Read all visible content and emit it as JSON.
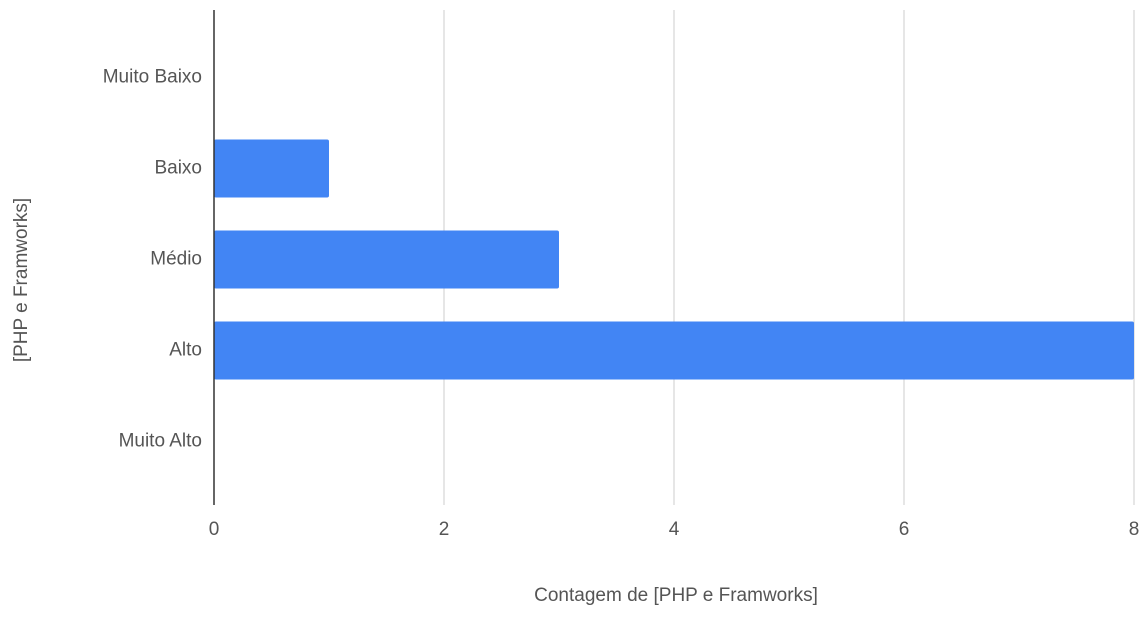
{
  "chart_data": {
    "type": "bar",
    "orientation": "horizontal",
    "categories": [
      "Muito Baixo",
      "Baixo",
      "Médio",
      "Alto",
      "Muito Alto"
    ],
    "values": [
      0,
      1,
      3,
      8,
      0
    ],
    "color": "#4285f4",
    "xlim": [
      0,
      8
    ],
    "xticks": [
      0,
      2,
      4,
      6,
      8
    ],
    "grid": true,
    "xlabel": "Contagem de [PHP e Framworks]",
    "ylabel": "[PHP e Framworks]"
  }
}
